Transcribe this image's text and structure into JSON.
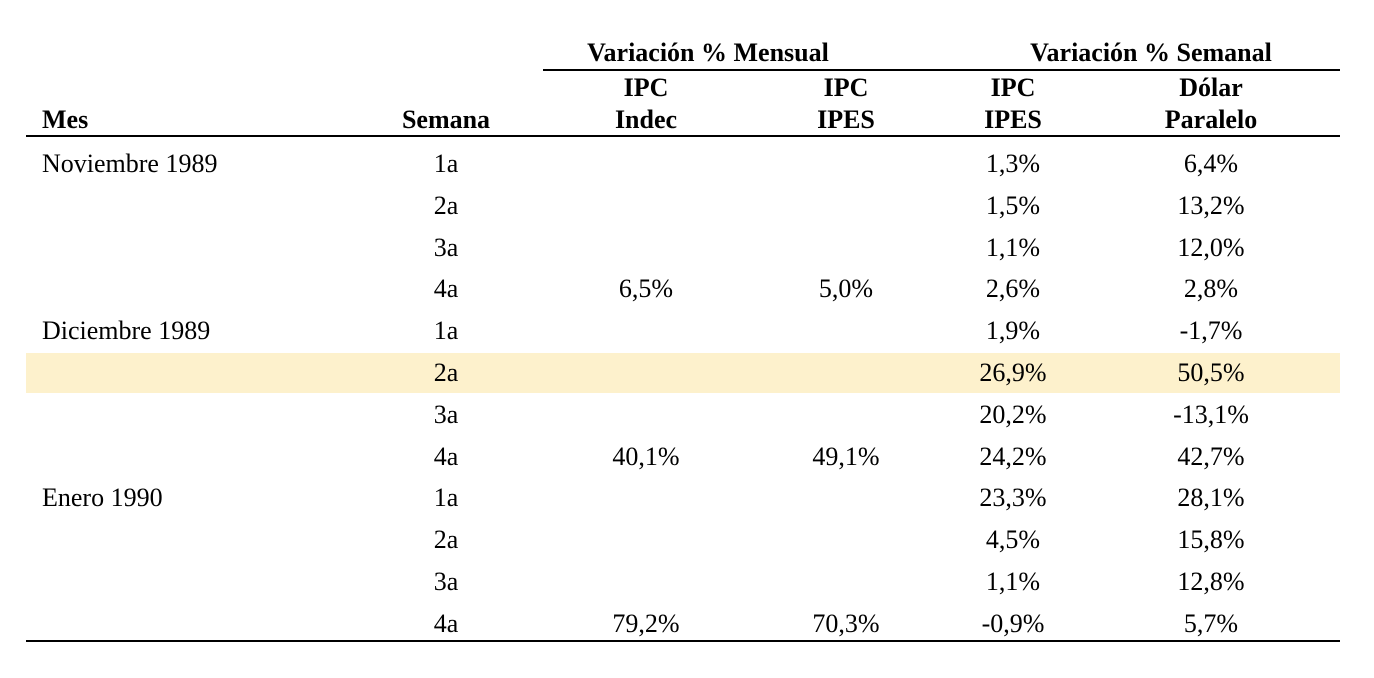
{
  "header": {
    "group_monthly": "Variación % Mensual",
    "group_weekly": "Variación % Semanal",
    "col_month": "Mes",
    "col_week": "Semana",
    "col_ipc_indec_line1": "IPC",
    "col_ipc_indec_line2": "Indec",
    "col_ipc_ipes_m_line1": "IPC",
    "col_ipc_ipes_m_line2": "IPES",
    "col_ipc_ipes_w_line1": "IPC",
    "col_ipc_ipes_w_line2": "IPES",
    "col_dolar_line1": "Dólar",
    "col_dolar_line2": "Paralelo"
  },
  "highlight_color": "#fdf1cc",
  "rows": [
    {
      "month": "Noviembre 1989",
      "week": "1a",
      "ipc_indec": "",
      "ipc_ipes_m": "",
      "ipc_ipes_w": "1,3%",
      "dolar": "6,4%"
    },
    {
      "month": "",
      "week": "2a",
      "ipc_indec": "",
      "ipc_ipes_m": "",
      "ipc_ipes_w": "1,5%",
      "dolar": "13,2%"
    },
    {
      "month": "",
      "week": "3a",
      "ipc_indec": "",
      "ipc_ipes_m": "",
      "ipc_ipes_w": "1,1%",
      "dolar": "12,0%"
    },
    {
      "month": "",
      "week": "4a",
      "ipc_indec": "6,5%",
      "ipc_ipes_m": "5,0%",
      "ipc_ipes_w": "2,6%",
      "dolar": "2,8%"
    },
    {
      "month": "Diciembre 1989",
      "week": "1a",
      "ipc_indec": "",
      "ipc_ipes_m": "",
      "ipc_ipes_w": "1,9%",
      "dolar": "-1,7%"
    },
    {
      "month": "",
      "week": "2a",
      "ipc_indec": "",
      "ipc_ipes_m": "",
      "ipc_ipes_w": "26,9%",
      "dolar": "50,5%",
      "highlight": true
    },
    {
      "month": "",
      "week": "3a",
      "ipc_indec": "",
      "ipc_ipes_m": "",
      "ipc_ipes_w": "20,2%",
      "dolar": "-13,1%"
    },
    {
      "month": "",
      "week": "4a",
      "ipc_indec": "40,1%",
      "ipc_ipes_m": "49,1%",
      "ipc_ipes_w": "24,2%",
      "dolar": "42,7%"
    },
    {
      "month": "Enero 1990",
      "week": "1a",
      "ipc_indec": "",
      "ipc_ipes_m": "",
      "ipc_ipes_w": "23,3%",
      "dolar": "28,1%"
    },
    {
      "month": "",
      "week": "2a",
      "ipc_indec": "",
      "ipc_ipes_m": "",
      "ipc_ipes_w": "4,5%",
      "dolar": "15,8%"
    },
    {
      "month": "",
      "week": "3a",
      "ipc_indec": "",
      "ipc_ipes_m": "",
      "ipc_ipes_w": "1,1%",
      "dolar": "12,8%"
    },
    {
      "month": "",
      "week": "4a",
      "ipc_indec": "79,2%",
      "ipc_ipes_m": "70,3%",
      "ipc_ipes_w": "-0,9%",
      "dolar": "5,7%"
    }
  ]
}
